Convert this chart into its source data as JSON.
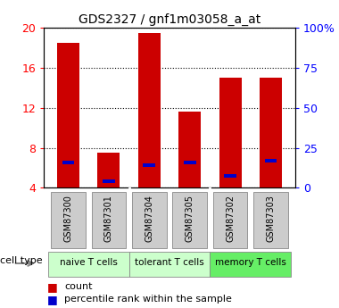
{
  "title": "GDS2327 / gnf1m03058_a_at",
  "samples": [
    "GSM87300",
    "GSM87301",
    "GSM87304",
    "GSM87305",
    "GSM87302",
    "GSM87303"
  ],
  "count_values": [
    18.5,
    7.5,
    19.5,
    11.6,
    15.0,
    15.0
  ],
  "percentile_values": [
    6.5,
    4.7,
    6.3,
    6.5,
    5.2,
    6.7
  ],
  "ymin": 4,
  "ymax": 20,
  "yticks_left": [
    4,
    8,
    12,
    16,
    20
  ],
  "yticks_right_vals": [
    4,
    8,
    12,
    16,
    20
  ],
  "yticks_right_labels": [
    "0",
    "25",
    "50",
    "75",
    "100%"
  ],
  "bar_color": "#cc0000",
  "percentile_color": "#0000cc",
  "bar_width": 0.55,
  "legend_count_label": "count",
  "legend_pct_label": "percentile rank within the sample",
  "cell_type_label": "cell type",
  "group_boundaries": [
    0,
    2,
    4,
    6
  ],
  "group_labels": [
    "naive T cells",
    "tolerant T cells",
    "memory T cells"
  ],
  "group_colors": [
    "#ccffcc",
    "#ccffcc",
    "#66ee66"
  ],
  "tick_box_color": "#cccccc",
  "tick_box_edge": "#888888"
}
